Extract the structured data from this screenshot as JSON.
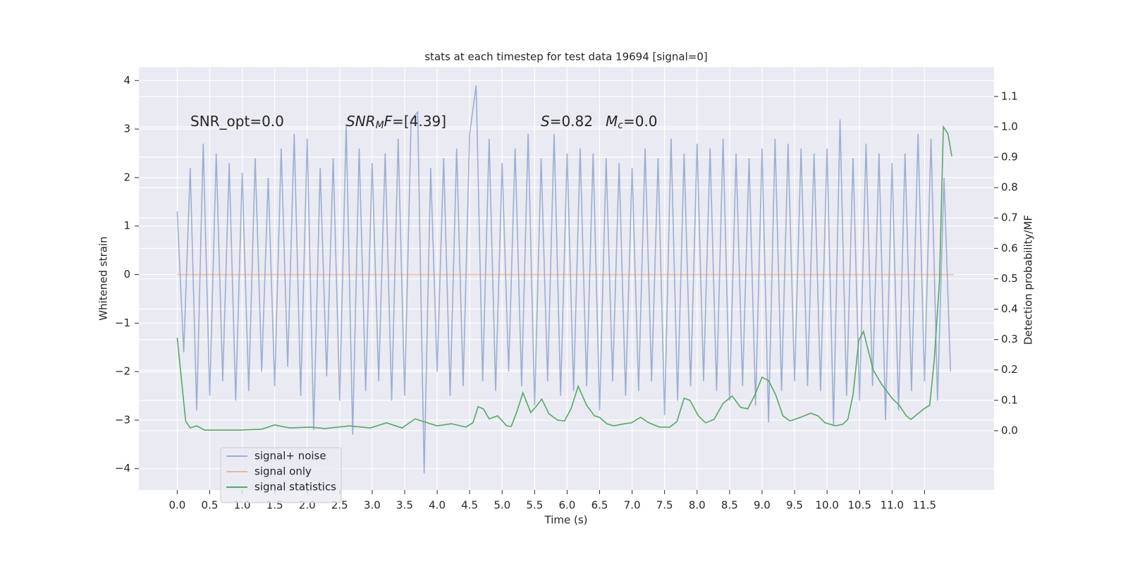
{
  "chart_data": {
    "type": "line",
    "title": "stats at each timestep for test data 19694 [signal=0]",
    "xlabel": "Time (s)",
    "ylabel": "Whitened strain",
    "y2label": "Detection probability/MF",
    "xlim": [
      -0.59,
      12.57
    ],
    "ylim": [
      -4.44,
      4.28
    ],
    "y2lim": [
      -0.195,
      1.197
    ],
    "grid": true,
    "legend": "lower left",
    "xticks": [
      {
        "value": 0,
        "label": "0.0"
      },
      0.5,
      {
        "value": 1,
        "label": "1.0"
      },
      1.5,
      {
        "value": 2,
        "label": "2.0"
      },
      2.5,
      {
        "value": 3,
        "label": "3.0"
      },
      3.5,
      {
        "value": 4,
        "label": "4.0"
      },
      4.5,
      {
        "value": 5,
        "label": "5.0"
      },
      5.5,
      {
        "value": 6,
        "label": "6.0"
      },
      6.5,
      {
        "value": 7,
        "label": "7.0"
      },
      7.5,
      {
        "value": 8,
        "label": "8.0"
      },
      8.5,
      {
        "value": 9,
        "label": "9.0"
      },
      9.5,
      {
        "value": 10,
        "label": "10.0"
      },
      10.5,
      {
        "value": 11,
        "label": "11.0"
      },
      11.5
    ],
    "yticks": [
      4,
      3,
      2,
      1,
      0,
      {
        "value": -1,
        "label": "−1"
      },
      {
        "value": -2,
        "label": "−2"
      },
      {
        "value": -3,
        "label": "−3"
      },
      {
        "value": -4,
        "label": "−4"
      }
    ],
    "y2ticks": [
      {
        "value": 0,
        "label": "0.0"
      },
      0.1,
      0.2,
      0.3,
      0.4,
      0.5,
      0.6,
      0.7,
      0.8,
      0.9,
      {
        "value": 1,
        "label": "1.0"
      },
      1.1
    ],
    "annotations": [
      [
        {
          "text": "SNR_opt=0.0"
        }
      ],
      [
        {
          "text": "SNR",
          "style": "italic"
        },
        {
          "text": "M",
          "style": "italic-sub"
        },
        {
          "text": "F",
          "style": "italic"
        },
        {
          "text": "=[4.39]"
        }
      ],
      [
        {
          "text": "S",
          "style": "italic"
        },
        {
          "text": "=0.82"
        }
      ],
      [
        {
          "text": "M",
          "style": "italic"
        },
        {
          "text": "c",
          "style": "italic-sub"
        },
        {
          "text": "=0.0"
        }
      ]
    ],
    "series": [
      {
        "name": "signal+ noise",
        "color": "#4c72b0",
        "opacity": 0.5,
        "x": [
          0,
          0.1,
          0.2,
          0.3,
          0.4,
          0.5,
          0.6,
          0.7,
          0.8,
          0.9,
          1,
          1.1,
          1.2,
          1.3,
          1.4,
          1.5,
          1.6,
          1.7,
          1.8,
          1.9,
          2,
          2.1,
          2.2,
          2.3,
          2.4,
          2.5,
          2.6,
          2.7,
          2.8,
          2.9,
          3,
          3.1,
          3.2,
          3.3,
          3.4,
          3.5,
          3.6,
          3.7,
          3.8,
          3.9,
          4,
          4.1,
          4.2,
          4.3,
          4.4,
          4.5,
          4.6,
          4.7,
          4.8,
          4.9,
          5,
          5.1,
          5.2,
          5.3,
          5.4,
          5.5,
          5.6,
          5.7,
          5.8,
          5.9,
          6,
          6.1,
          6.2,
          6.3,
          6.4,
          6.5,
          6.6,
          6.7,
          6.8,
          6.9,
          7,
          7.1,
          7.2,
          7.3,
          7.4,
          7.5,
          7.6,
          7.7,
          7.8,
          7.9,
          8,
          8.1,
          8.2,
          8.3,
          8.4,
          8.5,
          8.6,
          8.7,
          8.8,
          8.9,
          9,
          9.1,
          9.2,
          9.3,
          9.4,
          9.5,
          9.6,
          9.7,
          9.8,
          9.9,
          10,
          10.1,
          10.2,
          10.3,
          10.4,
          10.5,
          10.6,
          10.7,
          10.8,
          10.9,
          11,
          11.1,
          11.2,
          11.3,
          11.4,
          11.5,
          11.6,
          11.7,
          11.8,
          11.9
        ],
        "values": [
          1.3,
          -1.6,
          2.2,
          -2.8,
          2.7,
          -2.5,
          2.5,
          -2.2,
          2.3,
          -2.6,
          2.1,
          -2.4,
          2.4,
          -2.0,
          2.0,
          -2.3,
          2.6,
          -1.9,
          2.9,
          -2.5,
          2.8,
          -3.2,
          2.2,
          -2.1,
          2.4,
          -2.6,
          3.1,
          -3.3,
          2.6,
          -2.4,
          2.3,
          -2.2,
          2.5,
          -2.6,
          2.8,
          -2.5,
          3.2,
          3.35,
          -4.1,
          2.2,
          -2.0,
          2.4,
          -2.5,
          2.6,
          -2.3,
          2.9,
          3.9,
          -2.2,
          2.8,
          -2.4,
          2.3,
          -2.0,
          2.6,
          -2.3,
          2.9,
          -2.7,
          2.4,
          -2.2,
          2.9,
          -2.5,
          2.5,
          -2.4,
          2.6,
          -2.3,
          2.5,
          -2.8,
          2.4,
          -2.2,
          2.3,
          -2.5,
          2.2,
          -2.4,
          2.6,
          -2.2,
          2.4,
          -2.9,
          2.8,
          -2.6,
          2.5,
          -2.3,
          2.7,
          -2.2,
          2.6,
          -2.4,
          2.8,
          -2.6,
          2.5,
          -2.3,
          2.4,
          -2.7,
          2.6,
          -3.05,
          2.8,
          -2.4,
          2.7,
          -2.2,
          2.6,
          -2.3,
          2.5,
          -2.4,
          2.6,
          -3.1,
          3.2,
          -2.5,
          2.4,
          -2.6,
          2.7,
          -2.3,
          2.5,
          -3.0,
          2.3,
          -2.8,
          2.5,
          -2.4,
          2.9,
          -2.2,
          2.8,
          -2.6,
          2.0,
          -2.0
        ]
      },
      {
        "name": "signal only",
        "color": "#dd8452",
        "opacity": 0.5,
        "x": [
          0,
          11.95
        ],
        "values": [
          0,
          0
        ]
      },
      {
        "name": "signal statistics",
        "color": "#55a868",
        "opacity": 1,
        "axis": "y2",
        "x": [
          0,
          0.02,
          0.13,
          0.2,
          0.3,
          0.42,
          0.64,
          0.97,
          1.3,
          1.5,
          1.73,
          2.05,
          2.27,
          2.65,
          2.97,
          3.22,
          3.46,
          3.66,
          3.79,
          4.0,
          4.22,
          4.44,
          4.55,
          4.63,
          4.71,
          4.8,
          4.93,
          5.07,
          5.14,
          5.23,
          5.32,
          5.44,
          5.52,
          5.61,
          5.72,
          5.85,
          5.96,
          6.06,
          6.17,
          6.3,
          6.42,
          6.5,
          6.61,
          6.72,
          6.88,
          6.99,
          7.13,
          7.26,
          7.42,
          7.58,
          7.69,
          7.8,
          7.89,
          8.02,
          8.13,
          8.26,
          8.4,
          8.54,
          8.67,
          8.78,
          8.89,
          9.0,
          9.1,
          9.21,
          9.32,
          9.43,
          9.59,
          9.75,
          9.86,
          9.97,
          10.13,
          10.24,
          10.32,
          10.4,
          10.49,
          10.56,
          10.71,
          10.84,
          11.0,
          11.11,
          11.22,
          11.29,
          11.38,
          11.49,
          11.58,
          11.65,
          11.73,
          11.79,
          11.86,
          11.92
        ],
        "values": [
          0.306,
          0.264,
          0.032,
          0.009,
          0.016,
          0.002,
          0.002,
          0.002,
          0.005,
          0.019,
          0.009,
          0.012,
          0.007,
          0.016,
          0.009,
          0.026,
          0.009,
          0.039,
          0.03,
          0.016,
          0.023,
          0.012,
          0.026,
          0.079,
          0.072,
          0.039,
          0.049,
          0.016,
          0.014,
          0.065,
          0.125,
          0.06,
          0.079,
          0.104,
          0.056,
          0.035,
          0.032,
          0.072,
          0.146,
          0.084,
          0.049,
          0.044,
          0.023,
          0.016,
          0.023,
          0.026,
          0.044,
          0.026,
          0.012,
          0.012,
          0.03,
          0.107,
          0.1,
          0.049,
          0.026,
          0.037,
          0.09,
          0.114,
          0.077,
          0.072,
          0.118,
          0.176,
          0.165,
          0.118,
          0.049,
          0.032,
          0.044,
          0.058,
          0.049,
          0.026,
          0.016,
          0.021,
          0.037,
          0.118,
          0.299,
          0.327,
          0.2,
          0.153,
          0.107,
          0.084,
          0.049,
          0.037,
          0.053,
          0.072,
          0.084,
          0.234,
          0.49,
          1.0,
          0.977,
          0.903
        ]
      }
    ]
  }
}
